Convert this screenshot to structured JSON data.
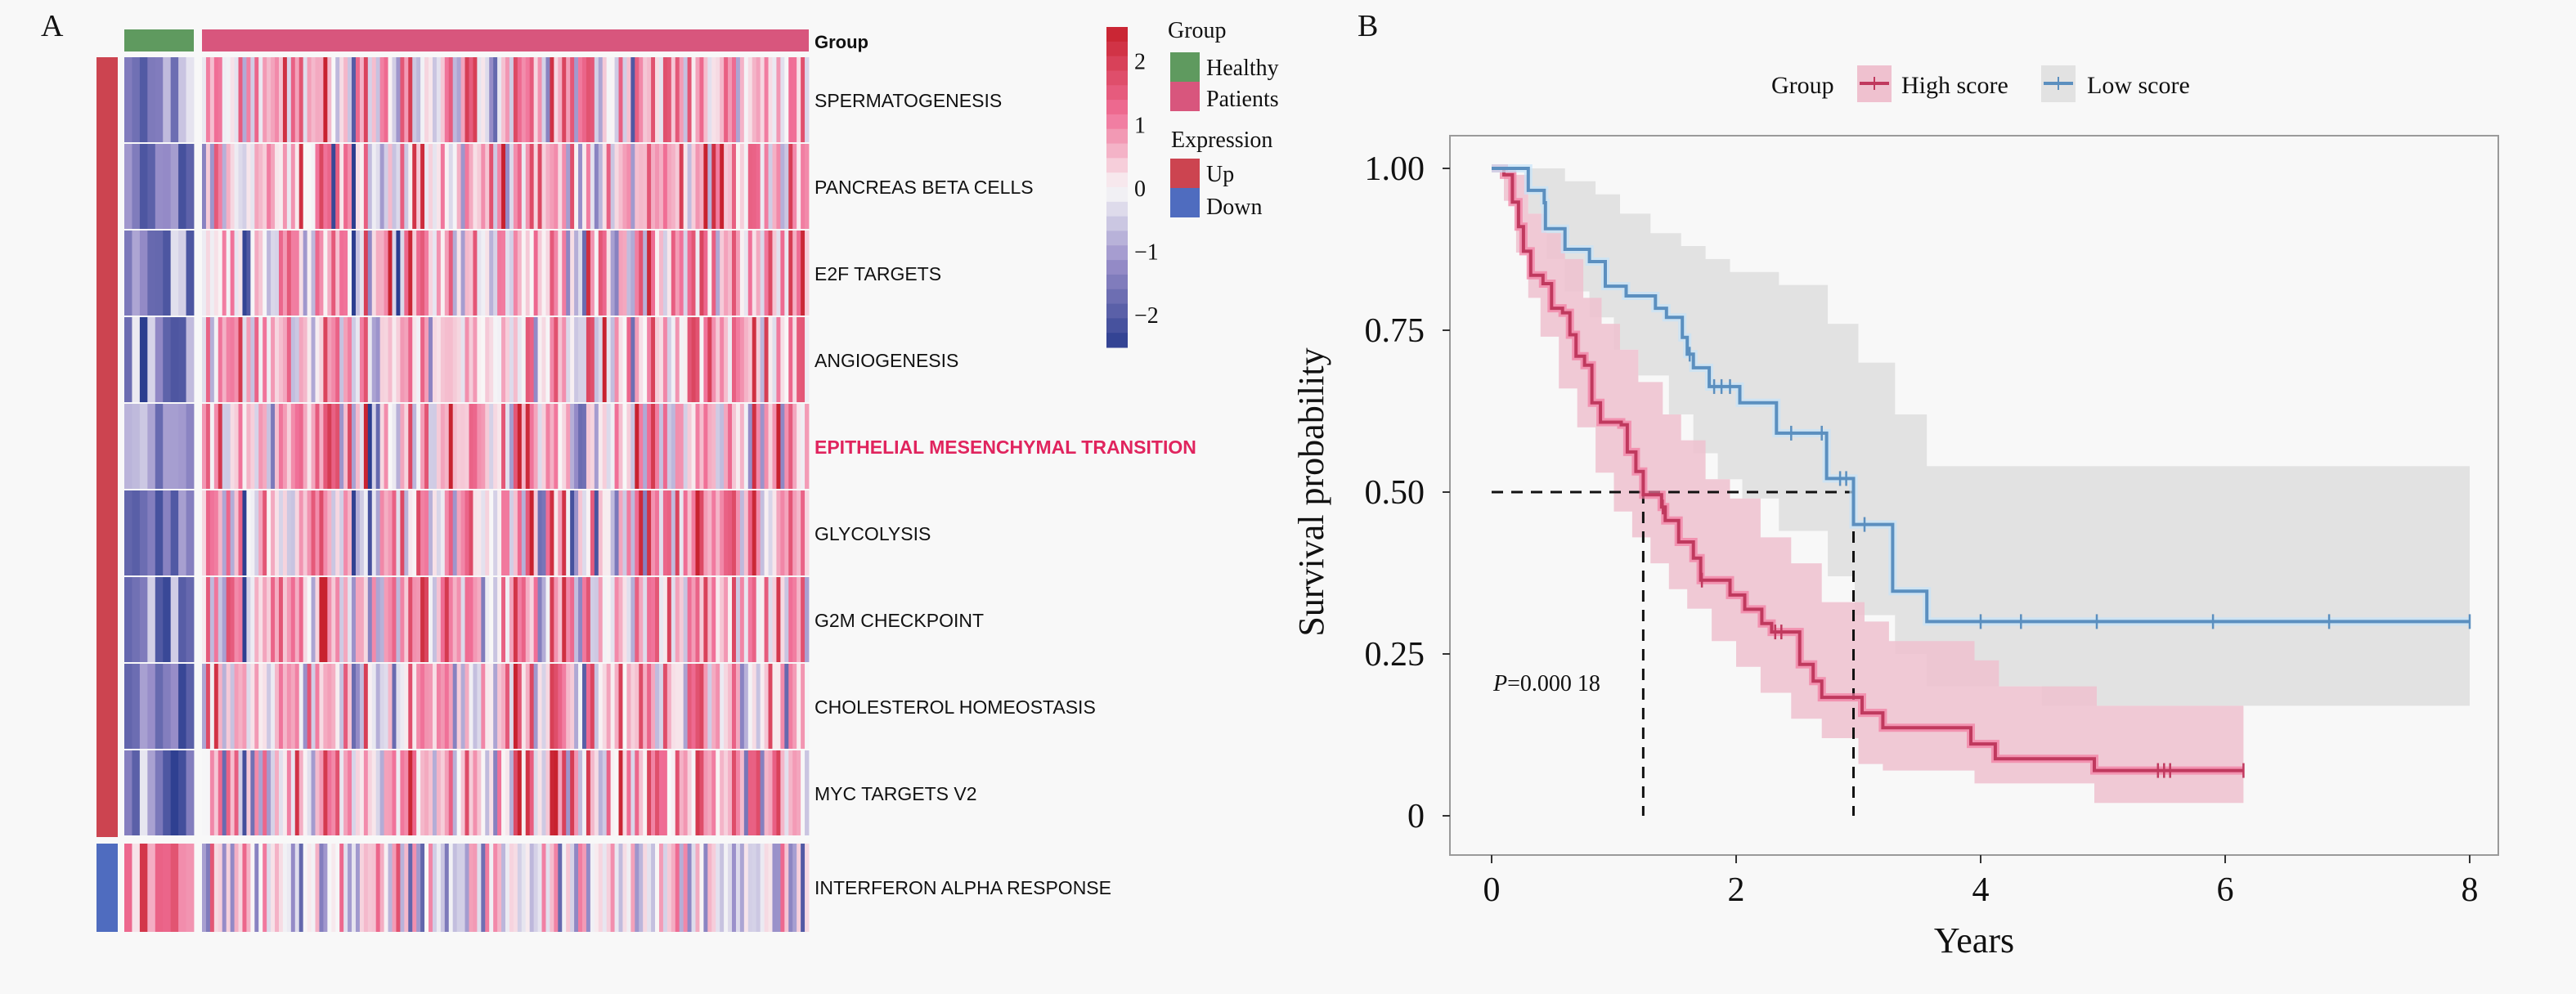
{
  "panels": {
    "a_label": "A",
    "b_label": "B"
  },
  "chart_data": [
    {
      "type": "heatmap",
      "panel": "A",
      "title": "",
      "top_annotation": {
        "name": "Group",
        "groups": [
          {
            "label": "Healthy",
            "color": "#5f9a5f",
            "n_columns": 9
          },
          {
            "label": "Patients",
            "color": "#d8567d",
            "n_columns": 150
          }
        ]
      },
      "left_annotation": {
        "name": "Expression",
        "blocks": [
          {
            "label": "Up",
            "color": "#cc4450",
            "rows": 9
          },
          {
            "label": "Down",
            "color": "#4f6cbf",
            "rows": 1
          }
        ]
      },
      "rows": [
        {
          "label": "SPERMATOGENESIS",
          "expression": "Up",
          "highlight": false
        },
        {
          "label": "PANCREAS BETA CELLS",
          "expression": "Up",
          "highlight": false
        },
        {
          "label": "E2F TARGETS",
          "expression": "Up",
          "highlight": false
        },
        {
          "label": "ANGIOGENESIS",
          "expression": "Up",
          "highlight": false
        },
        {
          "label": "EPITHELIAL MESENCHYMAL TRANSITION",
          "expression": "Up",
          "highlight": true
        },
        {
          "label": "GLYCOLYSIS",
          "expression": "Up",
          "highlight": false
        },
        {
          "label": "G2M CHECKPOINT",
          "expression": "Up",
          "highlight": false
        },
        {
          "label": "CHOLESTEROL HOMEOSTASIS",
          "expression": "Up",
          "highlight": false
        },
        {
          "label": "MYC TARGETS V2",
          "expression": "Up",
          "highlight": false
        },
        {
          "label": "INTERFERON ALPHA RESPONSE",
          "expression": "Down",
          "highlight": false
        }
      ],
      "highlight_color": "#e0245e",
      "pattern_summary": "Healthy columns mostly negative (blue) for Up rows and positive (red) for Down row; Patient columns mixed, predominantly positive (pink/red)",
      "color_scale": {
        "label": "",
        "ticks": [
          "2",
          "1",
          "0",
          "−1",
          "−2"
        ],
        "tick_values": [
          2,
          1,
          0,
          -1,
          -2
        ],
        "range": [
          -2.5,
          2.5
        ],
        "low_color": "#2b3d8f",
        "mid_color": "#f8f8f8",
        "high_color": "#c8222f"
      },
      "legend": {
        "group_title": "Group",
        "group_items": [
          {
            "label": "Healthy",
            "color": "#5f9a5f"
          },
          {
            "label": "Patients",
            "color": "#d8567d"
          }
        ],
        "expression_title": "Expression",
        "expression_items": [
          {
            "label": "Up",
            "color": "#cc4450"
          },
          {
            "label": "Down",
            "color": "#4f6cbf"
          }
        ]
      },
      "group_row_label": "Group"
    },
    {
      "type": "line",
      "subtype": "kaplan-meier",
      "panel": "B",
      "title": "",
      "xlabel": "Years",
      "ylabel": "Survival probability",
      "xlim": [
        -0.4,
        8.4
      ],
      "ylim": [
        -0.06,
        1.06
      ],
      "xticks": [
        0,
        2,
        4,
        6,
        8
      ],
      "xtick_labels": [
        "0",
        "2",
        "4",
        "6",
        "8"
      ],
      "yticks": [
        0,
        0.25,
        0.5,
        0.75,
        1.0
      ],
      "ytick_labels": [
        "0",
        "0.25",
        "0.50",
        "0.75",
        "1.00"
      ],
      "grid": false,
      "legend": {
        "title": "Group",
        "placement": "top-center",
        "items": [
          "High score",
          "Low score"
        ]
      },
      "annotation": {
        "p_italic": "P",
        "p_text": "=0.000 18",
        "x": 0.0,
        "y": 0.2
      },
      "median_lines": {
        "y": 0.5,
        "x_values": [
          1.24,
          2.96
        ]
      },
      "series": [
        {
          "name": "High score",
          "color": "#c0395e",
          "halo_color": "#f27aa0",
          "band_color": "#efc1cf",
          "steps": [
            [
              0,
              1.0
            ],
            [
              0.1,
              0.99
            ],
            [
              0.17,
              0.948
            ],
            [
              0.22,
              0.91
            ],
            [
              0.26,
              0.872
            ],
            [
              0.32,
              0.835
            ],
            [
              0.42,
              0.822
            ],
            [
              0.49,
              0.784
            ],
            [
              0.58,
              0.777
            ],
            [
              0.64,
              0.743
            ],
            [
              0.69,
              0.71
            ],
            [
              0.76,
              0.696
            ],
            [
              0.82,
              0.638
            ],
            [
              0.89,
              0.608
            ],
            [
              1.06,
              0.604
            ],
            [
              1.11,
              0.562
            ],
            [
              1.18,
              0.532
            ],
            [
              1.24,
              0.496
            ],
            [
              1.39,
              0.477
            ],
            [
              1.42,
              0.456
            ],
            [
              1.53,
              0.423
            ],
            [
              1.65,
              0.398
            ],
            [
              1.71,
              0.364
            ],
            [
              1.95,
              0.341
            ],
            [
              2.07,
              0.319
            ],
            [
              2.21,
              0.297
            ],
            [
              2.29,
              0.284
            ],
            [
              2.52,
              0.234
            ],
            [
              2.63,
              0.208
            ],
            [
              2.7,
              0.183
            ],
            [
              3.03,
              0.159
            ],
            [
              3.2,
              0.136
            ],
            [
              3.92,
              0.111
            ],
            [
              4.12,
              0.088
            ],
            [
              4.93,
              0.07
            ],
            [
              6.15,
              0.07
            ]
          ],
          "censored": [
            [
              1.4,
              0.477
            ],
            [
              1.72,
              0.364
            ],
            [
              2.32,
              0.284
            ],
            [
              2.37,
              0.284
            ],
            [
              5.45,
              0.07
            ],
            [
              5.5,
              0.07
            ],
            [
              5.55,
              0.07
            ],
            [
              6.15,
              0.07
            ]
          ],
          "ci_upper": [
            [
              0,
              1.0
            ],
            [
              0.2,
              0.99
            ],
            [
              0.3,
              0.93
            ],
            [
              0.45,
              0.9
            ],
            [
              0.6,
              0.86
            ],
            [
              0.75,
              0.8
            ],
            [
              0.9,
              0.76
            ],
            [
              1.05,
              0.72
            ],
            [
              1.2,
              0.67
            ],
            [
              1.4,
              0.62
            ],
            [
              1.55,
              0.58
            ],
            [
              1.75,
              0.52
            ],
            [
              1.95,
              0.49
            ],
            [
              2.2,
              0.43
            ],
            [
              2.45,
              0.39
            ],
            [
              2.7,
              0.33
            ],
            [
              3.05,
              0.3
            ],
            [
              3.25,
              0.27
            ],
            [
              3.95,
              0.24
            ],
            [
              4.15,
              0.2
            ],
            [
              4.95,
              0.17
            ],
            [
              6.15,
              0.17
            ]
          ],
          "ci_lower": [
            [
              0,
              1.0
            ],
            [
              0.1,
              0.95
            ],
            [
              0.2,
              0.87
            ],
            [
              0.3,
              0.8
            ],
            [
              0.4,
              0.74
            ],
            [
              0.55,
              0.66
            ],
            [
              0.7,
              0.6
            ],
            [
              0.85,
              0.53
            ],
            [
              1.0,
              0.47
            ],
            [
              1.15,
              0.43
            ],
            [
              1.3,
              0.39
            ],
            [
              1.45,
              0.35
            ],
            [
              1.6,
              0.32
            ],
            [
              1.8,
              0.27
            ],
            [
              2.0,
              0.23
            ],
            [
              2.2,
              0.19
            ],
            [
              2.45,
              0.15
            ],
            [
              2.7,
              0.12
            ],
            [
              3.0,
              0.08
            ],
            [
              3.2,
              0.07
            ],
            [
              3.95,
              0.05
            ],
            [
              4.93,
              0.02
            ],
            [
              6.15,
              0.02
            ]
          ]
        },
        {
          "name": "Low score",
          "color": "#5b8fbf",
          "halo_color": "#c6e4fa",
          "band_color": "#e2e2e2",
          "steps": [
            [
              0,
              1.0
            ],
            [
              0.3,
              0.966
            ],
            [
              0.43,
              0.947
            ],
            [
              0.44,
              0.907
            ],
            [
              0.6,
              0.875
            ],
            [
              0.8,
              0.856
            ],
            [
              0.93,
              0.818
            ],
            [
              1.1,
              0.803
            ],
            [
              1.34,
              0.784
            ],
            [
              1.43,
              0.77
            ],
            [
              1.56,
              0.739
            ],
            [
              1.6,
              0.713
            ],
            [
              1.65,
              0.692
            ],
            [
              1.78,
              0.663
            ],
            [
              2.03,
              0.638
            ],
            [
              2.33,
              0.591
            ],
            [
              2.74,
              0.521
            ],
            [
              2.96,
              0.45
            ],
            [
              3.28,
              0.347
            ],
            [
              3.56,
              0.3
            ],
            [
              8.0,
              0.3
            ]
          ],
          "censored": [
            [
              1.62,
              0.713
            ],
            [
              1.82,
              0.663
            ],
            [
              1.88,
              0.663
            ],
            [
              1.95,
              0.663
            ],
            [
              2.45,
              0.591
            ],
            [
              2.7,
              0.591
            ],
            [
              2.85,
              0.521
            ],
            [
              2.9,
              0.521
            ],
            [
              3.05,
              0.45
            ],
            [
              4.0,
              0.3
            ],
            [
              4.33,
              0.3
            ],
            [
              4.95,
              0.3
            ],
            [
              5.9,
              0.3
            ],
            [
              6.85,
              0.3
            ],
            [
              8.0,
              0.3
            ]
          ],
          "ci_upper": [
            [
              0,
              1.0
            ],
            [
              0.4,
              1.0
            ],
            [
              0.6,
              0.98
            ],
            [
              0.85,
              0.96
            ],
            [
              1.05,
              0.93
            ],
            [
              1.3,
              0.9
            ],
            [
              1.55,
              0.88
            ],
            [
              1.75,
              0.86
            ],
            [
              1.95,
              0.84
            ],
            [
              2.35,
              0.82
            ],
            [
              2.75,
              0.76
            ],
            [
              3.0,
              0.7
            ],
            [
              3.3,
              0.62
            ],
            [
              3.56,
              0.54
            ],
            [
              8.0,
              0.54
            ]
          ],
          "ci_lower": [
            [
              0,
              1.0
            ],
            [
              0.3,
              0.93
            ],
            [
              0.45,
              0.86
            ],
            [
              0.6,
              0.81
            ],
            [
              0.8,
              0.77
            ],
            [
              1.0,
              0.72
            ],
            [
              1.2,
              0.68
            ],
            [
              1.45,
              0.62
            ],
            [
              1.65,
              0.56
            ],
            [
              1.85,
              0.52
            ],
            [
              2.05,
              0.49
            ],
            [
              2.35,
              0.44
            ],
            [
              2.75,
              0.37
            ],
            [
              2.97,
              0.31
            ],
            [
              3.3,
              0.25
            ],
            [
              3.56,
              0.2
            ],
            [
              4.5,
              0.17
            ],
            [
              8.0,
              0.17
            ]
          ]
        }
      ]
    }
  ]
}
